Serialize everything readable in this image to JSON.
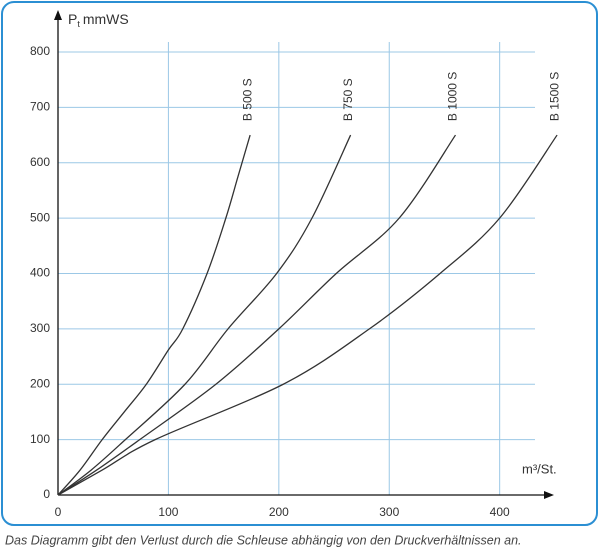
{
  "chart_data": {
    "type": "line",
    "y_label": {
      "main": "P",
      "sub": "t",
      "unit": "mmWS"
    },
    "x_label": "m³/St.",
    "caption": "Das Diagramm gibt den Verlust durch die Schleuse abhängig von den Druckverhältnissen an.",
    "xlim": [
      0,
      432
    ],
    "ylim": [
      0,
      800
    ],
    "xticks": [
      0,
      100,
      200,
      300,
      400
    ],
    "yticks": [
      0,
      100,
      200,
      300,
      400,
      500,
      600,
      700,
      800
    ],
    "grid": true,
    "grid_color": "#9cc8e6",
    "frame_color": "#2b8fd3",
    "series": [
      {
        "name": "B 500 S",
        "color": "#333333",
        "x": [
          0,
          20,
          40,
          60,
          80,
          100,
          113,
          135,
          152,
          163,
          174
        ],
        "values": [
          0,
          45,
          100,
          150,
          200,
          262,
          300,
          400,
          500,
          575,
          650
        ]
      },
      {
        "name": "B 750 S",
        "color": "#333333",
        "x": [
          0,
          30,
          61,
          115,
          154,
          198,
          230,
          265
        ],
        "values": [
          0,
          45,
          100,
          200,
          300,
          400,
          500,
          650
        ]
      },
      {
        "name": "B 1000 S",
        "color": "#333333",
        "x": [
          0,
          35,
          74,
          143,
          200,
          252,
          309,
          360
        ],
        "values": [
          0,
          45,
          100,
          200,
          300,
          400,
          500,
          650
        ]
      },
      {
        "name": "B 1500 S",
        "color": "#333333",
        "x": [
          0,
          40,
          88,
          204,
          282,
          346,
          400,
          452
        ],
        "values": [
          0,
          45,
          100,
          200,
          300,
          400,
          500,
          650
        ]
      }
    ]
  }
}
